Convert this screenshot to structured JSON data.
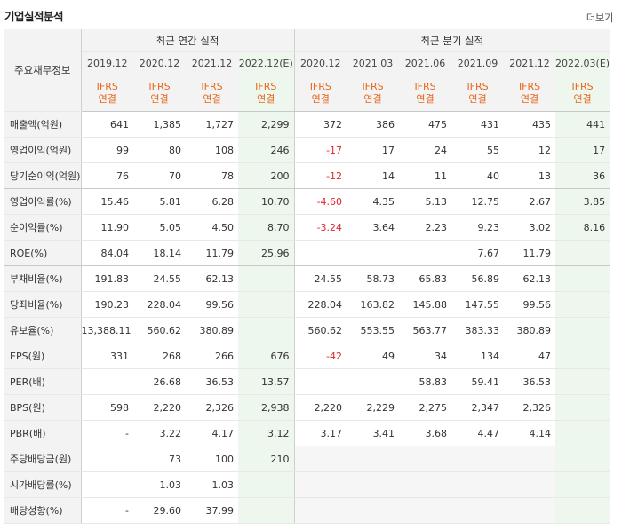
{
  "page": {
    "title": "기업실적분석",
    "more_label": "더보기"
  },
  "table": {
    "row_header_label": "주요재무정보",
    "group_annual_label": "최근 연간 실적",
    "group_quarter_label": "최근 분기 실적",
    "periods": [
      "2019.12",
      "2020.12",
      "2021.12",
      "2022.12(E)",
      "2020.12",
      "2021.03",
      "2021.06",
      "2021.09",
      "2021.12",
      "2022.03(E)"
    ],
    "estimate_columns": [
      3,
      9
    ],
    "standard_lines": [
      "IFRS",
      "연결"
    ],
    "rows": [
      {
        "label": "매출액(억원)",
        "values": [
          "641",
          "1,385",
          "1,727",
          "2,299",
          "372",
          "386",
          "475",
          "431",
          "435",
          "441"
        ]
      },
      {
        "label": "영업이익(억원)",
        "values": [
          "99",
          "80",
          "108",
          "246",
          "-17",
          "17",
          "24",
          "55",
          "12",
          "17"
        ]
      },
      {
        "label": "당기순이익(억원)",
        "values": [
          "76",
          "70",
          "78",
          "200",
          "-12",
          "14",
          "11",
          "40",
          "13",
          "36"
        ]
      },
      {
        "label": "영업이익률(%)",
        "values": [
          "15.46",
          "5.81",
          "6.28",
          "10.70",
          "-4.60",
          "4.35",
          "5.13",
          "12.75",
          "2.67",
          "3.85"
        ]
      },
      {
        "label": "순이익률(%)",
        "values": [
          "11.90",
          "5.05",
          "4.50",
          "8.70",
          "-3.24",
          "3.64",
          "2.23",
          "9.23",
          "3.02",
          "8.16"
        ]
      },
      {
        "label": "ROE(%)",
        "values": [
          "84.04",
          "18.14",
          "11.79",
          "25.96",
          "",
          "",
          "",
          "7.67",
          "11.79",
          ""
        ]
      },
      {
        "label": "부채비율(%)",
        "values": [
          "191.83",
          "24.55",
          "62.13",
          "",
          "24.55",
          "58.73",
          "65.83",
          "56.89",
          "62.13",
          ""
        ]
      },
      {
        "label": "당좌비율(%)",
        "values": [
          "190.23",
          "228.04",
          "99.56",
          "",
          "228.04",
          "163.82",
          "145.88",
          "147.55",
          "99.56",
          ""
        ]
      },
      {
        "label": "유보율(%)",
        "values": [
          "13,388.11",
          "560.62",
          "380.89",
          "",
          "560.62",
          "553.55",
          "563.77",
          "383.33",
          "380.89",
          ""
        ]
      },
      {
        "label": "EPS(원)",
        "values": [
          "331",
          "268",
          "266",
          "676",
          "-42",
          "49",
          "34",
          "134",
          "47",
          ""
        ]
      },
      {
        "label": "PER(배)",
        "values": [
          "",
          "26.68",
          "36.53",
          "13.57",
          "",
          "",
          "58.83",
          "59.41",
          "36.53",
          ""
        ]
      },
      {
        "label": "BPS(원)",
        "values": [
          "598",
          "2,220",
          "2,326",
          "2,938",
          "2,220",
          "2,229",
          "2,275",
          "2,347",
          "2,326",
          ""
        ]
      },
      {
        "label": "PBR(배)",
        "values": [
          "-",
          "3.22",
          "4.17",
          "3.12",
          "3.17",
          "3.41",
          "3.68",
          "4.47",
          "4.14",
          ""
        ]
      },
      {
        "label": "주당배당금(원)",
        "values": [
          "",
          "73",
          "100",
          "210",
          "",
          "",
          "",
          "",
          "",
          ""
        ]
      },
      {
        "label": "시가배당률(%)",
        "values": [
          "",
          "1.03",
          "1.03",
          "",
          "",
          "",
          "",
          "",
          "",
          ""
        ]
      },
      {
        "label": "배당성향(%)",
        "values": [
          "-",
          "29.60",
          "37.99",
          "",
          "",
          "",
          "",
          "",
          "",
          ""
        ]
      }
    ],
    "group_ends_after_row": [
      2,
      5,
      8,
      12
    ],
    "gray_quarter_from_row": 13
  }
}
